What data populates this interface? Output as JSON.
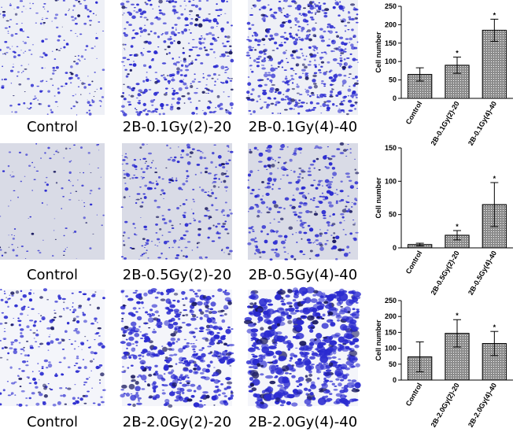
{
  "image_labels": [
    [
      "Control",
      "2B-0.1Gy(2)-20",
      "2B-0.1Gy(4)-40"
    ],
    [
      "Control",
      "2B-0.5Gy(2)-20",
      "2B-0.5Gy(4)-40"
    ],
    [
      "Control",
      "2B-2.0Gy(2)-20",
      "2B-2.0Gy(4)-40"
    ]
  ],
  "chart_data": [
    {
      "type": "bar",
      "y_label": "Cell number",
      "color": "#8c8c8c",
      "categories": [
        "Control",
        "2B-0.1Gy(2)-20",
        "2B-0.1Gy(4)-40"
      ],
      "values": [
        65,
        90,
        185
      ],
      "errors": [
        18,
        22,
        30
      ],
      "ylim": [
        0,
        250
      ],
      "yticks": [
        0,
        50,
        100,
        150,
        200,
        250
      ],
      "annotations": [
        {
          "category": "2B-0.1Gy(2)-20",
          "text": "*"
        },
        {
          "category": "2B-0.1Gy(4)-40",
          "text": "*"
        }
      ]
    },
    {
      "type": "bar",
      "y_label": "Cell number",
      "color": "#8c8c8c",
      "categories": [
        "Control",
        "2B-0.5Gy(2)-20",
        "2B-0.5Gy(4)-40"
      ],
      "values": [
        5,
        19,
        65
      ],
      "errors": [
        2,
        7,
        33
      ],
      "ylim": [
        0,
        150
      ],
      "yticks": [
        0,
        50,
        100,
        150
      ],
      "annotations": [
        {
          "category": "2B-0.5Gy(2)-20",
          "text": "*"
        },
        {
          "category": "2B-0.5Gy(4)-40",
          "text": "*"
        }
      ]
    },
    {
      "type": "bar",
      "y_label": "Cell number",
      "color": "#8c8c8c",
      "categories": [
        "Control",
        "2B-2.0Gy(2)-20",
        "2B-2.0Gy(4)-40"
      ],
      "values": [
        73,
        147,
        115
      ],
      "errors": [
        47,
        43,
        38
      ],
      "ylim": [
        0,
        250
      ],
      "yticks": [
        0,
        50,
        100,
        150,
        200,
        250
      ],
      "annotations": [
        {
          "category": "2B-2.0Gy(2)-20",
          "text": "*"
        },
        {
          "category": "2B-2.0Gy(4)-40",
          "text": "*"
        }
      ]
    }
  ]
}
